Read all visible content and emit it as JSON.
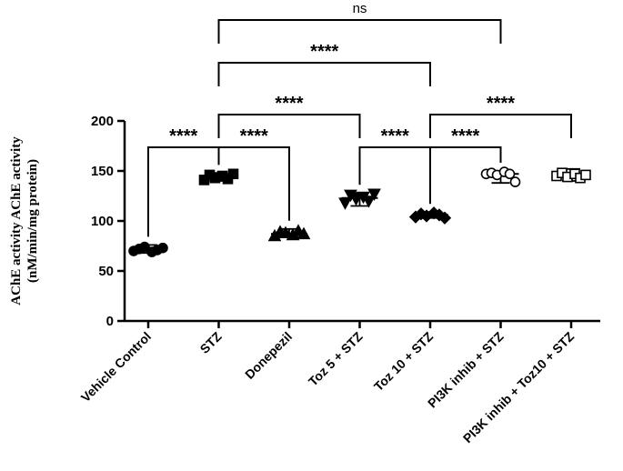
{
  "chart_data": {
    "type": "scatter",
    "ylabel_line1": "AChE activity AChE activity",
    "ylabel_line2": "(nM/min/mg protein)",
    "ylim": [
      0,
      200
    ],
    "yticks": [
      0,
      50,
      100,
      150,
      200
    ],
    "categories": [
      "Vehicle Control",
      "STZ",
      "Donepezil",
      "Toz 5 + STZ",
      "Toz 10 + STZ",
      "PI3K inhib + STZ",
      "PI3K inhib + Toz10 + STZ"
    ],
    "groups": [
      {
        "category": "Vehicle Control",
        "marker": "circle-filled",
        "median": 71,
        "min": 68,
        "max": 76,
        "points": [
          70,
          72,
          74,
          69,
          71,
          73
        ]
      },
      {
        "category": "STZ",
        "marker": "square-filled",
        "median": 144,
        "min": 140,
        "max": 148,
        "points": [
          141,
          146,
          143,
          145,
          142,
          147
        ]
      },
      {
        "category": "Donepezil",
        "marker": "triangle-up-filled",
        "median": 87,
        "min": 84,
        "max": 92,
        "points": [
          85,
          89,
          88,
          86,
          90,
          87
        ]
      },
      {
        "category": "Toz 5 + STZ",
        "marker": "triangle-down-filled",
        "median": 123,
        "min": 115,
        "max": 128,
        "points": [
          118,
          126,
          122,
          124,
          120,
          127
        ]
      },
      {
        "category": "Toz 10 + STZ",
        "marker": "diamond-filled",
        "median": 106,
        "min": 103,
        "max": 109,
        "points": [
          104,
          107,
          105,
          108,
          106,
          103
        ]
      },
      {
        "category": "PI3K inhib + STZ",
        "marker": "circle-open",
        "median": 147,
        "min": 138,
        "max": 150,
        "points": [
          147,
          148,
          146,
          149,
          147,
          139
        ]
      },
      {
        "category": "PI3K inhib + Toz10 + STZ",
        "marker": "square-open",
        "median": 146,
        "min": 140,
        "max": 152,
        "points": [
          145,
          148,
          144,
          147,
          143,
          146
        ]
      }
    ],
    "comparisons": [
      {
        "from": "Vehicle Control",
        "to": "STZ",
        "label": "****",
        "level": 0
      },
      {
        "from": "STZ",
        "to": "Donepezil",
        "label": "****",
        "level": 0
      },
      {
        "from": "Toz 5 + STZ",
        "to": "Toz 10 + STZ",
        "label": "****",
        "level": 0
      },
      {
        "from": "Toz 10 + STZ",
        "to": "PI3K inhib + STZ",
        "label": "****",
        "level": 0
      },
      {
        "from": "STZ",
        "to": "Toz 5 + STZ",
        "label": "****",
        "level": 1
      },
      {
        "from": "Toz 10 + STZ",
        "to": "PI3K inhib + Toz10 + STZ",
        "label": "****",
        "level": 1
      },
      {
        "from": "STZ",
        "to": "Toz 10 + STZ",
        "label": "****",
        "level": 2
      },
      {
        "from": "STZ",
        "to": "PI3K inhib + STZ",
        "label": "ns",
        "level": 3
      }
    ]
  }
}
